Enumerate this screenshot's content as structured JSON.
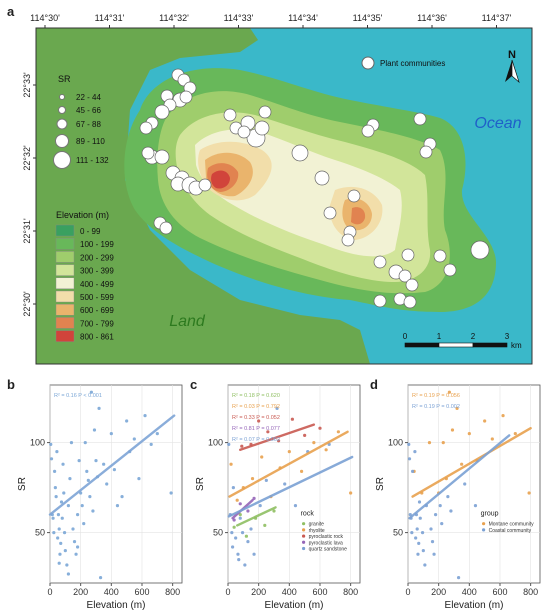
{
  "panels": {
    "a": "a",
    "b": "b",
    "c": "c",
    "d": "d"
  },
  "map": {
    "lon_ticks": [
      "114°30'",
      "114°31'",
      "114°32'",
      "114°33'",
      "114°34'",
      "114°35'",
      "114°36'",
      "114°37'"
    ],
    "lat_ticks": [
      "22°33'",
      "22°32'",
      "22°31'",
      "22°30'"
    ],
    "north_label": "N",
    "ocean_label": "Ocean",
    "land_label": "Land",
    "plant_communities_label": "Plant communities",
    "sr_legend": {
      "title": "SR",
      "classes": [
        "22 - 44",
        "45 - 66",
        "67 - 88",
        "89 - 110",
        "111 - 132"
      ]
    },
    "elevation_legend": {
      "title": "Elevation (m)",
      "classes": [
        "0 - 99",
        "100 - 199",
        "200 - 299",
        "300 - 399",
        "400 - 499",
        "500 - 599",
        "600 - 699",
        "700 - 799",
        "800 - 861"
      ],
      "colors": [
        "#3aa060",
        "#68b85a",
        "#9fcd6c",
        "#d2e59a",
        "#f2f2d4",
        "#f2deaa",
        "#eab46c",
        "#e18350",
        "#d1443b"
      ]
    },
    "scalebar": {
      "ticks": [
        "0",
        "1",
        "2",
        "3"
      ],
      "unit": "km"
    },
    "colors": {
      "ocean": "#3ab8c9",
      "land": "#6aa84f"
    }
  },
  "chart_data": [
    {
      "panel": "b",
      "type": "scatter",
      "xlabel": "Elevation (m)",
      "ylabel": "SR",
      "xlim": [
        0,
        861
      ],
      "ylim": [
        22,
        132
      ],
      "xticks": [
        "0",
        "200",
        "400",
        "600",
        "800"
      ],
      "yticks": [
        "50",
        "100"
      ],
      "annotation": "R² = 0.16  P < 0.001",
      "points": [
        [
          5,
          99
        ],
        [
          10,
          91
        ],
        [
          15,
          60
        ],
        [
          20,
          58
        ],
        [
          25,
          50
        ],
        [
          30,
          84
        ],
        [
          35,
          75
        ],
        [
          40,
          70
        ],
        [
          45,
          95
        ],
        [
          50,
          47
        ],
        [
          55,
          60
        ],
        [
          60,
          52
        ],
        [
          65,
          38
        ],
        [
          70,
          44
        ],
        [
          75,
          67
        ],
        [
          80,
          58
        ],
        [
          85,
          88
        ],
        [
          90,
          72
        ],
        [
          95,
          50
        ],
        [
          100,
          40
        ],
        [
          110,
          32
        ],
        [
          120,
          65
        ],
        [
          130,
          80
        ],
        [
          140,
          100
        ],
        [
          150,
          52
        ],
        [
          160,
          45
        ],
        [
          170,
          38
        ],
        [
          180,
          60
        ],
        [
          190,
          90
        ],
        [
          200,
          72
        ],
        [
          210,
          65
        ],
        [
          220,
          55
        ],
        [
          230,
          100
        ],
        [
          240,
          84
        ],
        [
          250,
          79
        ],
        [
          260,
          70
        ],
        [
          270,
          128
        ],
        [
          280,
          62
        ],
        [
          290,
          107
        ],
        [
          300,
          90
        ],
        [
          310,
          81
        ],
        [
          320,
          119
        ],
        [
          330,
          25
        ],
        [
          350,
          88
        ],
        [
          370,
          77
        ],
        [
          400,
          105
        ],
        [
          420,
          85
        ],
        [
          440,
          65
        ],
        [
          470,
          70
        ],
        [
          500,
          112
        ],
        [
          520,
          95
        ],
        [
          550,
          102
        ],
        [
          580,
          80
        ],
        [
          620,
          115
        ],
        [
          660,
          99
        ],
        [
          700,
          105
        ],
        [
          790,
          72
        ],
        [
          60,
          33
        ],
        [
          120,
          27
        ],
        [
          180,
          42
        ]
      ],
      "fit_line": [
        [
          0,
          60
        ],
        [
          810,
          115
        ]
      ],
      "colors": {
        "points": "#7aa6d6",
        "line": "#7ea5d6"
      }
    },
    {
      "panel": "c",
      "type": "scatter",
      "xlabel": "Elevation (m)",
      "ylabel": "SR",
      "xlim": [
        0,
        861
      ],
      "ylim": [
        22,
        132
      ],
      "xticks": [
        "0",
        "200",
        "400",
        "600",
        "800"
      ],
      "yticks": [
        "50",
        "100"
      ],
      "legend_title": "rock",
      "series": [
        {
          "name": "granite",
          "color": "#8fbf62",
          "stat": "R² = 0.18  P = 0.620",
          "line": [
            [
              60,
              54
            ],
            [
              310,
              64
            ]
          ],
          "points": [
            [
              40,
              53
            ],
            [
              80,
              60
            ],
            [
              120,
              48
            ],
            [
              180,
              58
            ],
            [
              240,
              54
            ],
            [
              300,
              62
            ]
          ]
        },
        {
          "name": "rhyolite",
          "color": "#e8a14e",
          "stat": "R² = 0.03  P = 0.792",
          "line": [
            [
              10,
              70
            ],
            [
              780,
              106
            ]
          ],
          "points": [
            [
              20,
              88
            ],
            [
              60,
              68
            ],
            [
              100,
              75
            ],
            [
              160,
              80
            ],
            [
              220,
              92
            ],
            [
              280,
              70
            ],
            [
              340,
              86
            ],
            [
              400,
              95
            ],
            [
              480,
              84
            ],
            [
              560,
              100
            ],
            [
              640,
              96
            ],
            [
              720,
              106
            ],
            [
              800,
              72
            ]
          ]
        },
        {
          "name": "pyroclastic rock",
          "color": "#c95a52",
          "stat": "R² = 0.33  P = 0.052",
          "line": [
            [
              80,
              96
            ],
            [
              560,
              110
            ]
          ],
          "points": [
            [
              90,
              98
            ],
            [
              150,
              99
            ],
            [
              200,
              112
            ],
            [
              260,
              106
            ],
            [
              330,
              101
            ],
            [
              420,
              113
            ],
            [
              500,
              104
            ],
            [
              600,
              108
            ]
          ]
        },
        {
          "name": "pyroclastic lava",
          "color": "#9565b8",
          "stat": "R² = 0.81  P = 0.077",
          "line": [
            [
              30,
              58
            ],
            [
              160,
              68
            ]
          ],
          "points": [
            [
              40,
              57
            ],
            [
              80,
              66
            ],
            [
              130,
              62
            ],
            [
              170,
              69
            ]
          ]
        },
        {
          "name": "quartz sandstone",
          "color": "#7ba1d4",
          "stat": "R² = 0.07  P = 0.062",
          "line": [
            [
              5,
              59
            ],
            [
              810,
              92
            ]
          ],
          "points": [
            [
              5,
              99
            ],
            [
              15,
              60
            ],
            [
              25,
              50
            ],
            [
              35,
              75
            ],
            [
              50,
              47
            ],
            [
              65,
              38
            ],
            [
              80,
              58
            ],
            [
              95,
              50
            ],
            [
              110,
              32
            ],
            [
              150,
              52
            ],
            [
              170,
              38
            ],
            [
              210,
              65
            ],
            [
              250,
              79
            ],
            [
              320,
              119
            ],
            [
              370,
              77
            ],
            [
              440,
              65
            ],
            [
              520,
              95
            ],
            [
              660,
              99
            ],
            [
              30,
              42
            ],
            [
              70,
              35
            ],
            [
              130,
              45
            ]
          ]
        }
      ]
    },
    {
      "panel": "d",
      "type": "scatter",
      "xlabel": "Elevation (m)",
      "ylabel": "SR",
      "xlim": [
        0,
        861
      ],
      "ylim": [
        22,
        132
      ],
      "xticks": [
        "0",
        "200",
        "400",
        "600",
        "800"
      ],
      "yticks": [
        "50",
        "100"
      ],
      "legend_title": "group",
      "series": [
        {
          "name": "Montane community",
          "color": "#e8a14e",
          "stat": "R² = 0.19  P = 0.056",
          "line": [
            [
              30,
              70
            ],
            [
              800,
              108
            ]
          ],
          "points": [
            [
              40,
              84
            ],
            [
              90,
              72
            ],
            [
              140,
              100
            ],
            [
              200,
              72
            ],
            [
              230,
              100
            ],
            [
              270,
              128
            ],
            [
              290,
              107
            ],
            [
              320,
              119
            ],
            [
              350,
              88
            ],
            [
              400,
              105
            ],
            [
              500,
              112
            ],
            [
              550,
              102
            ],
            [
              620,
              115
            ],
            [
              700,
              105
            ],
            [
              790,
              72
            ],
            [
              250,
              80
            ],
            [
              450,
              90
            ]
          ]
        },
        {
          "name": "Coastal community",
          "color": "#7ba1d4",
          "stat": "R² = 0.19  P = 0.002",
          "line": [
            [
              10,
              58
            ],
            [
              660,
              104
            ]
          ],
          "points": [
            [
              5,
              99
            ],
            [
              10,
              91
            ],
            [
              15,
              60
            ],
            [
              20,
              58
            ],
            [
              25,
              50
            ],
            [
              30,
              84
            ],
            [
              45,
              95
            ],
            [
              50,
              47
            ],
            [
              55,
              60
            ],
            [
              60,
              52
            ],
            [
              65,
              38
            ],
            [
              70,
              44
            ],
            [
              75,
              67
            ],
            [
              80,
              58
            ],
            [
              95,
              50
            ],
            [
              100,
              40
            ],
            [
              110,
              32
            ],
            [
              120,
              65
            ],
            [
              150,
              52
            ],
            [
              160,
              45
            ],
            [
              170,
              38
            ],
            [
              180,
              60
            ],
            [
              210,
              65
            ],
            [
              220,
              55
            ],
            [
              260,
              70
            ],
            [
              280,
              62
            ],
            [
              330,
              25
            ],
            [
              370,
              77
            ],
            [
              440,
              65
            ]
          ]
        }
      ]
    }
  ]
}
